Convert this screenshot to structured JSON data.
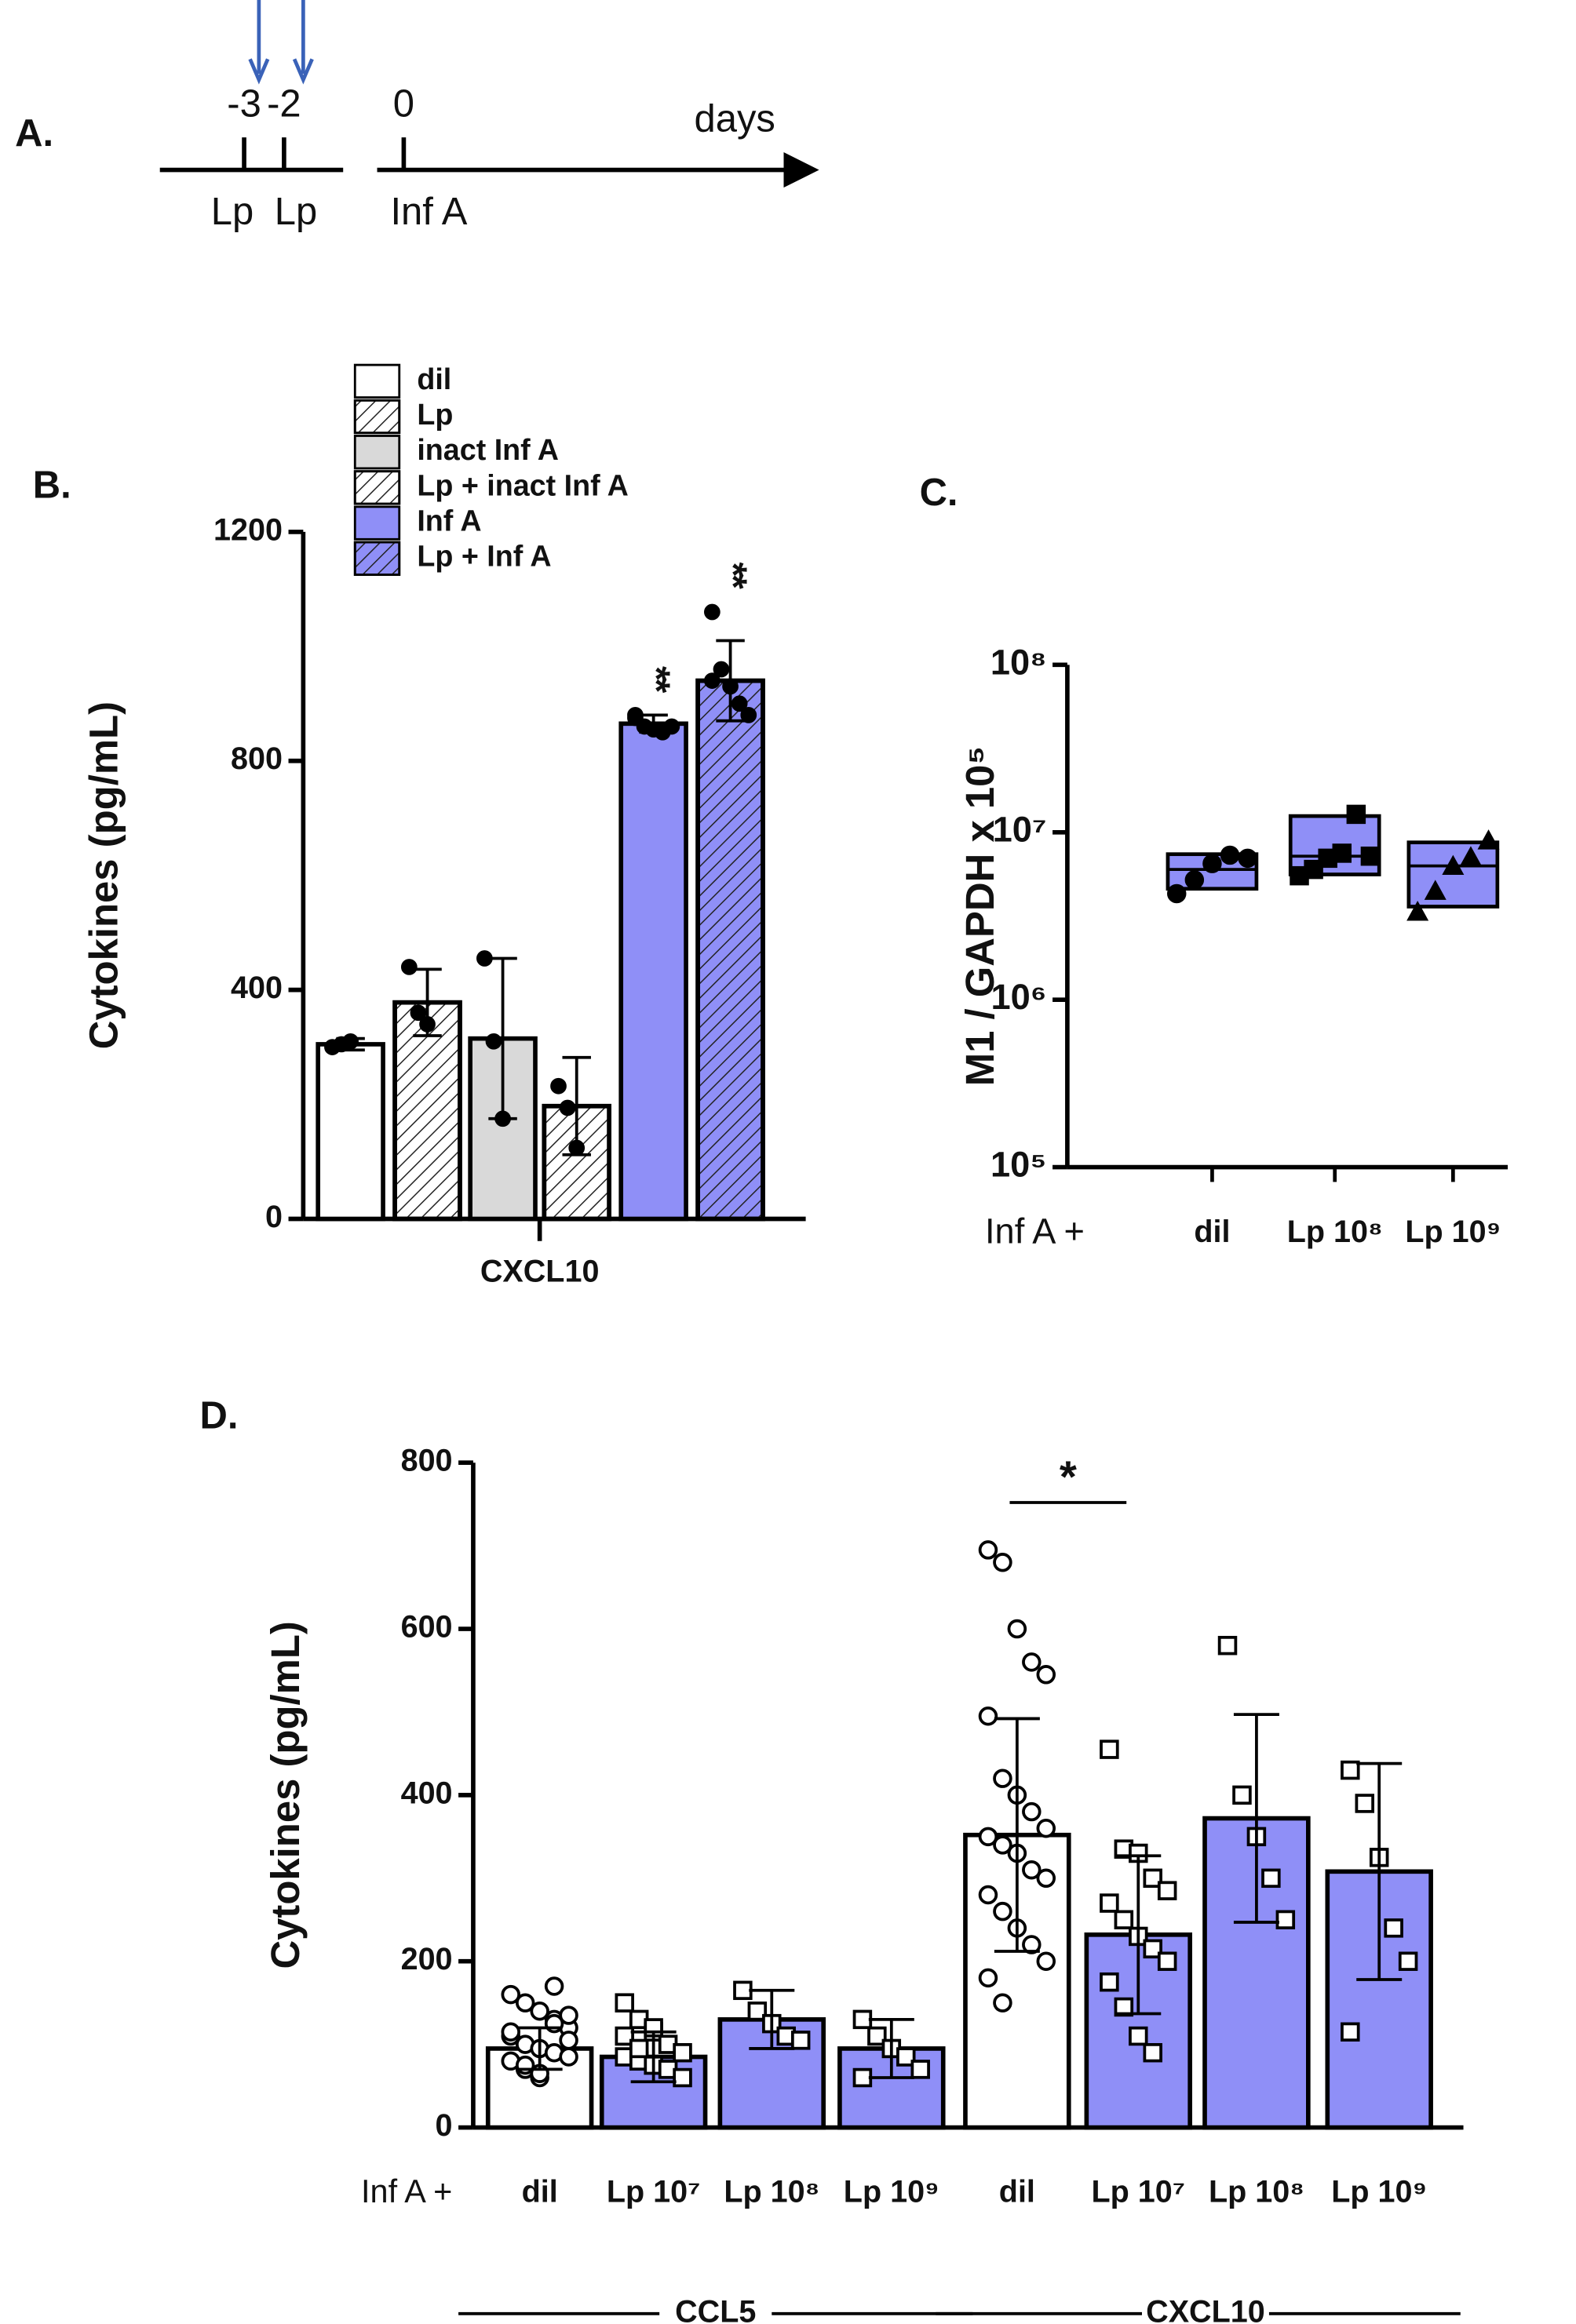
{
  "chart_data": [
    {
      "type": "timeline",
      "panel": "A.",
      "ticks": [
        -3,
        -2,
        0
      ],
      "xlabel": "days",
      "events": [
        {
          "day": -3,
          "label": "Lp"
        },
        {
          "day": -2,
          "label": "Lp"
        },
        {
          "day": 0,
          "label": "Inf A"
        }
      ],
      "arrows": [
        -3,
        -2
      ],
      "arrow_color": "#3a62b8"
    },
    {
      "type": "bar",
      "panel": "B.",
      "ylabel": "Cytokines (pg/mL)",
      "xlabel": "CXCL10",
      "ylim": [
        0,
        1200
      ],
      "yticks": [
        0,
        400,
        800,
        1200
      ],
      "series": [
        {
          "name": "dil",
          "color": "#ffffff",
          "hatch": false,
          "values": [
            305
          ],
          "errors": [
            10
          ],
          "points": [
            [
              300,
              305,
              310
            ]
          ]
        },
        {
          "name": "Lp",
          "color": "#ffffff",
          "hatch": true,
          "values": [
            378
          ],
          "errors": [
            58
          ],
          "points": [
            [
              440,
              360,
              340
            ]
          ]
        },
        {
          "name": "inact Inf A",
          "color": "#d9d9d9",
          "hatch": false,
          "values": [
            315
          ],
          "errors": [
            140
          ],
          "points": [
            [
              455,
              310,
              175
            ]
          ]
        },
        {
          "name": "Lp + inact Inf A",
          "color": "#ffffff",
          "hatch": true,
          "values": [
            197
          ],
          "errors": [
            85
          ],
          "points": [
            [
              232,
              194,
              124
            ]
          ]
        },
        {
          "name": "Inf A",
          "color": "#8f8ff7",
          "hatch": false,
          "values": [
            865
          ],
          "errors": [
            15
          ],
          "points": [
            [
              880,
              860,
              855,
              850,
              860,
              875
            ]
          ]
        },
        {
          "name": "Lp + Inf A",
          "color": "#8f8ff7",
          "hatch": true,
          "values": [
            940
          ],
          "errors": [
            70
          ],
          "points": [
            [
              1060,
              960,
              930,
              900,
              880,
              940
            ]
          ]
        }
      ],
      "annotations": [
        {
          "text": "**",
          "series": 4
        },
        {
          "text": "**",
          "series": 5
        }
      ]
    },
    {
      "type": "box",
      "panel": "C.",
      "ylabel": "M1 / GAPDH x 10⁵",
      "prefix": "Inf A +",
      "log_scale": true,
      "color": "#8f8ff7",
      "ylim": [
        100000,
        100000000
      ],
      "yticks": [
        {
          "value": 100000,
          "label": "10⁵"
        },
        {
          "value": 1000000,
          "label": "10⁶"
        },
        {
          "value": 10000000,
          "label": "10⁷"
        },
        {
          "value": 100000000,
          "label": "10⁸"
        }
      ],
      "categories": [
        "dil",
        "Lp 10⁸",
        "Lp 10⁹"
      ],
      "markers": [
        "circle",
        "square",
        "triangle"
      ],
      "boxes": [
        {
          "min": 4600000,
          "median": 6000000,
          "max": 7400000
        },
        {
          "min": 5600000,
          "median": 7200000,
          "max": 12500000
        },
        {
          "min": 3600000,
          "median": 6300000,
          "max": 8700000
        }
      ],
      "points": [
        [
          4300000,
          5200000,
          6500000,
          7300000,
          7000000
        ],
        [
          5500000,
          6000000,
          7000000,
          7500000,
          12800000,
          7200000
        ],
        [
          3300000,
          4400000,
          6200000,
          7000000,
          8800000
        ]
      ]
    },
    {
      "type": "bar",
      "panel": "D.",
      "ylabel": "Cytokines (pg/mL)",
      "prefix": "Inf A +",
      "ylim": [
        0,
        800
      ],
      "yticks": [
        0,
        200,
        400,
        600,
        800
      ],
      "categories": [
        "dil",
        "Lp 10⁷",
        "Lp 10⁸",
        "Lp 10⁹",
        "dil",
        "Lp 10⁷",
        "Lp 10⁸",
        "Lp 10⁹"
      ],
      "colors": [
        "#ffffff",
        "#8f8ff7",
        "#8f8ff7",
        "#8f8ff7",
        "#ffffff",
        "#8f8ff7",
        "#8f8ff7",
        "#8f8ff7"
      ],
      "markers": [
        "circle",
        "square",
        "square",
        "square",
        "circle",
        "square",
        "square",
        "square"
      ],
      "values": [
        95,
        85,
        130,
        95,
        352,
        232,
        372,
        308
      ],
      "errors": [
        25,
        30,
        35,
        35,
        140,
        95,
        125,
        130
      ],
      "points": [
        [
          160,
          150,
          140,
          130,
          120,
          110,
          100,
          95,
          90,
          85,
          80,
          70,
          60,
          170,
          105,
          115,
          75,
          65,
          125,
          135
        ],
        [
          150,
          130,
          115,
          100,
          90,
          85,
          80,
          75,
          70,
          60,
          110,
          95,
          120
        ],
        [
          165,
          140,
          125,
          110,
          105
        ],
        [
          130,
          110,
          95,
          85,
          70,
          60
        ],
        [
          695,
          680,
          600,
          560,
          545,
          495,
          420,
          400,
          380,
          360,
          350,
          340,
          330,
          310,
          300,
          280,
          260,
          240,
          220,
          200,
          180,
          150
        ],
        [
          455,
          335,
          330,
          300,
          285,
          270,
          250,
          230,
          215,
          200,
          175,
          145,
          110,
          90
        ],
        [
          580,
          400,
          350,
          300,
          250
        ],
        [
          430,
          390,
          325,
          240,
          200,
          115
        ]
      ],
      "groups": [
        {
          "label": "CCL5",
          "from": 0,
          "to": 3
        },
        {
          "label": "CXCL10",
          "from": 4,
          "to": 7
        }
      ],
      "annotations": [
        {
          "text": "*",
          "from": 4,
          "to": 5
        }
      ]
    }
  ]
}
